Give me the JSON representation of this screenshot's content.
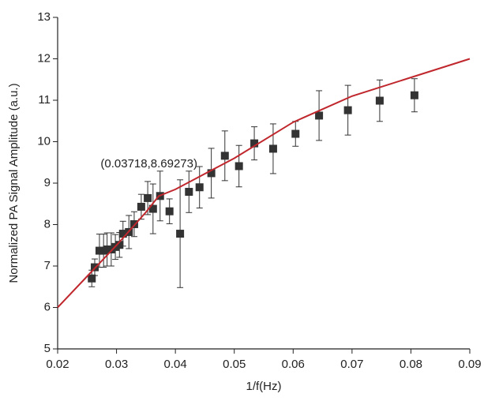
{
  "chart_data": {
    "type": "scatter",
    "xlabel": "1/f(Hz)",
    "ylabel": "Normalized PA Signal Amplitude (a.u.)",
    "annotation": "(0.03718,8.69273)",
    "xlim": [
      0.02,
      0.09
    ],
    "ylim": [
      5,
      13
    ],
    "xticks": [
      0.02,
      0.03,
      0.04,
      0.05,
      0.06,
      0.07,
      0.08,
      0.09
    ],
    "yticks": [
      5,
      6,
      7,
      8,
      9,
      10,
      11,
      12,
      13
    ],
    "series": [
      {
        "type": "scatter",
        "color": "#333333",
        "x": [
          0.0258,
          0.0263,
          0.0271,
          0.0278,
          0.0284,
          0.0291,
          0.0298,
          0.0305,
          0.0311,
          0.0321,
          0.033,
          0.0342,
          0.0353,
          0.0362,
          0.0374,
          0.039,
          0.0408,
          0.0423,
          0.0441,
          0.0461,
          0.0484,
          0.0508,
          0.0534,
          0.0566,
          0.0604,
          0.0644,
          0.0693,
          0.0747,
          0.0806
        ],
        "values": [
          6.7,
          6.97,
          7.37,
          7.37,
          7.4,
          7.4,
          7.46,
          7.51,
          7.78,
          7.82,
          8.01,
          8.43,
          8.64,
          8.38,
          8.69,
          8.32,
          7.78,
          8.79,
          8.9,
          9.24,
          9.66,
          9.41,
          9.96,
          9.83,
          10.19,
          10.63,
          10.76,
          10.99,
          11.12
        ],
        "errors": [
          0.2,
          0.2,
          0.4,
          0.4,
          0.4,
          0.4,
          0.3,
          0.3,
          0.3,
          0.4,
          0.3,
          0.3,
          0.4,
          0.6,
          0.6,
          0.3,
          1.3,
          0.5,
          0.5,
          0.6,
          0.6,
          0.5,
          0.4,
          0.6,
          0.3,
          0.6,
          0.6,
          0.5,
          0.4
        ]
      },
      {
        "type": "line",
        "color": "#c0272d",
        "x": [
          0.02,
          0.025,
          0.03,
          0.035,
          0.03718,
          0.04,
          0.05,
          0.06,
          0.07,
          0.08,
          0.09
        ],
        "values": [
          6.0,
          6.75,
          7.5,
          8.3,
          8.69,
          8.85,
          9.6,
          10.47,
          11.1,
          11.55,
          12.0
        ]
      }
    ]
  }
}
